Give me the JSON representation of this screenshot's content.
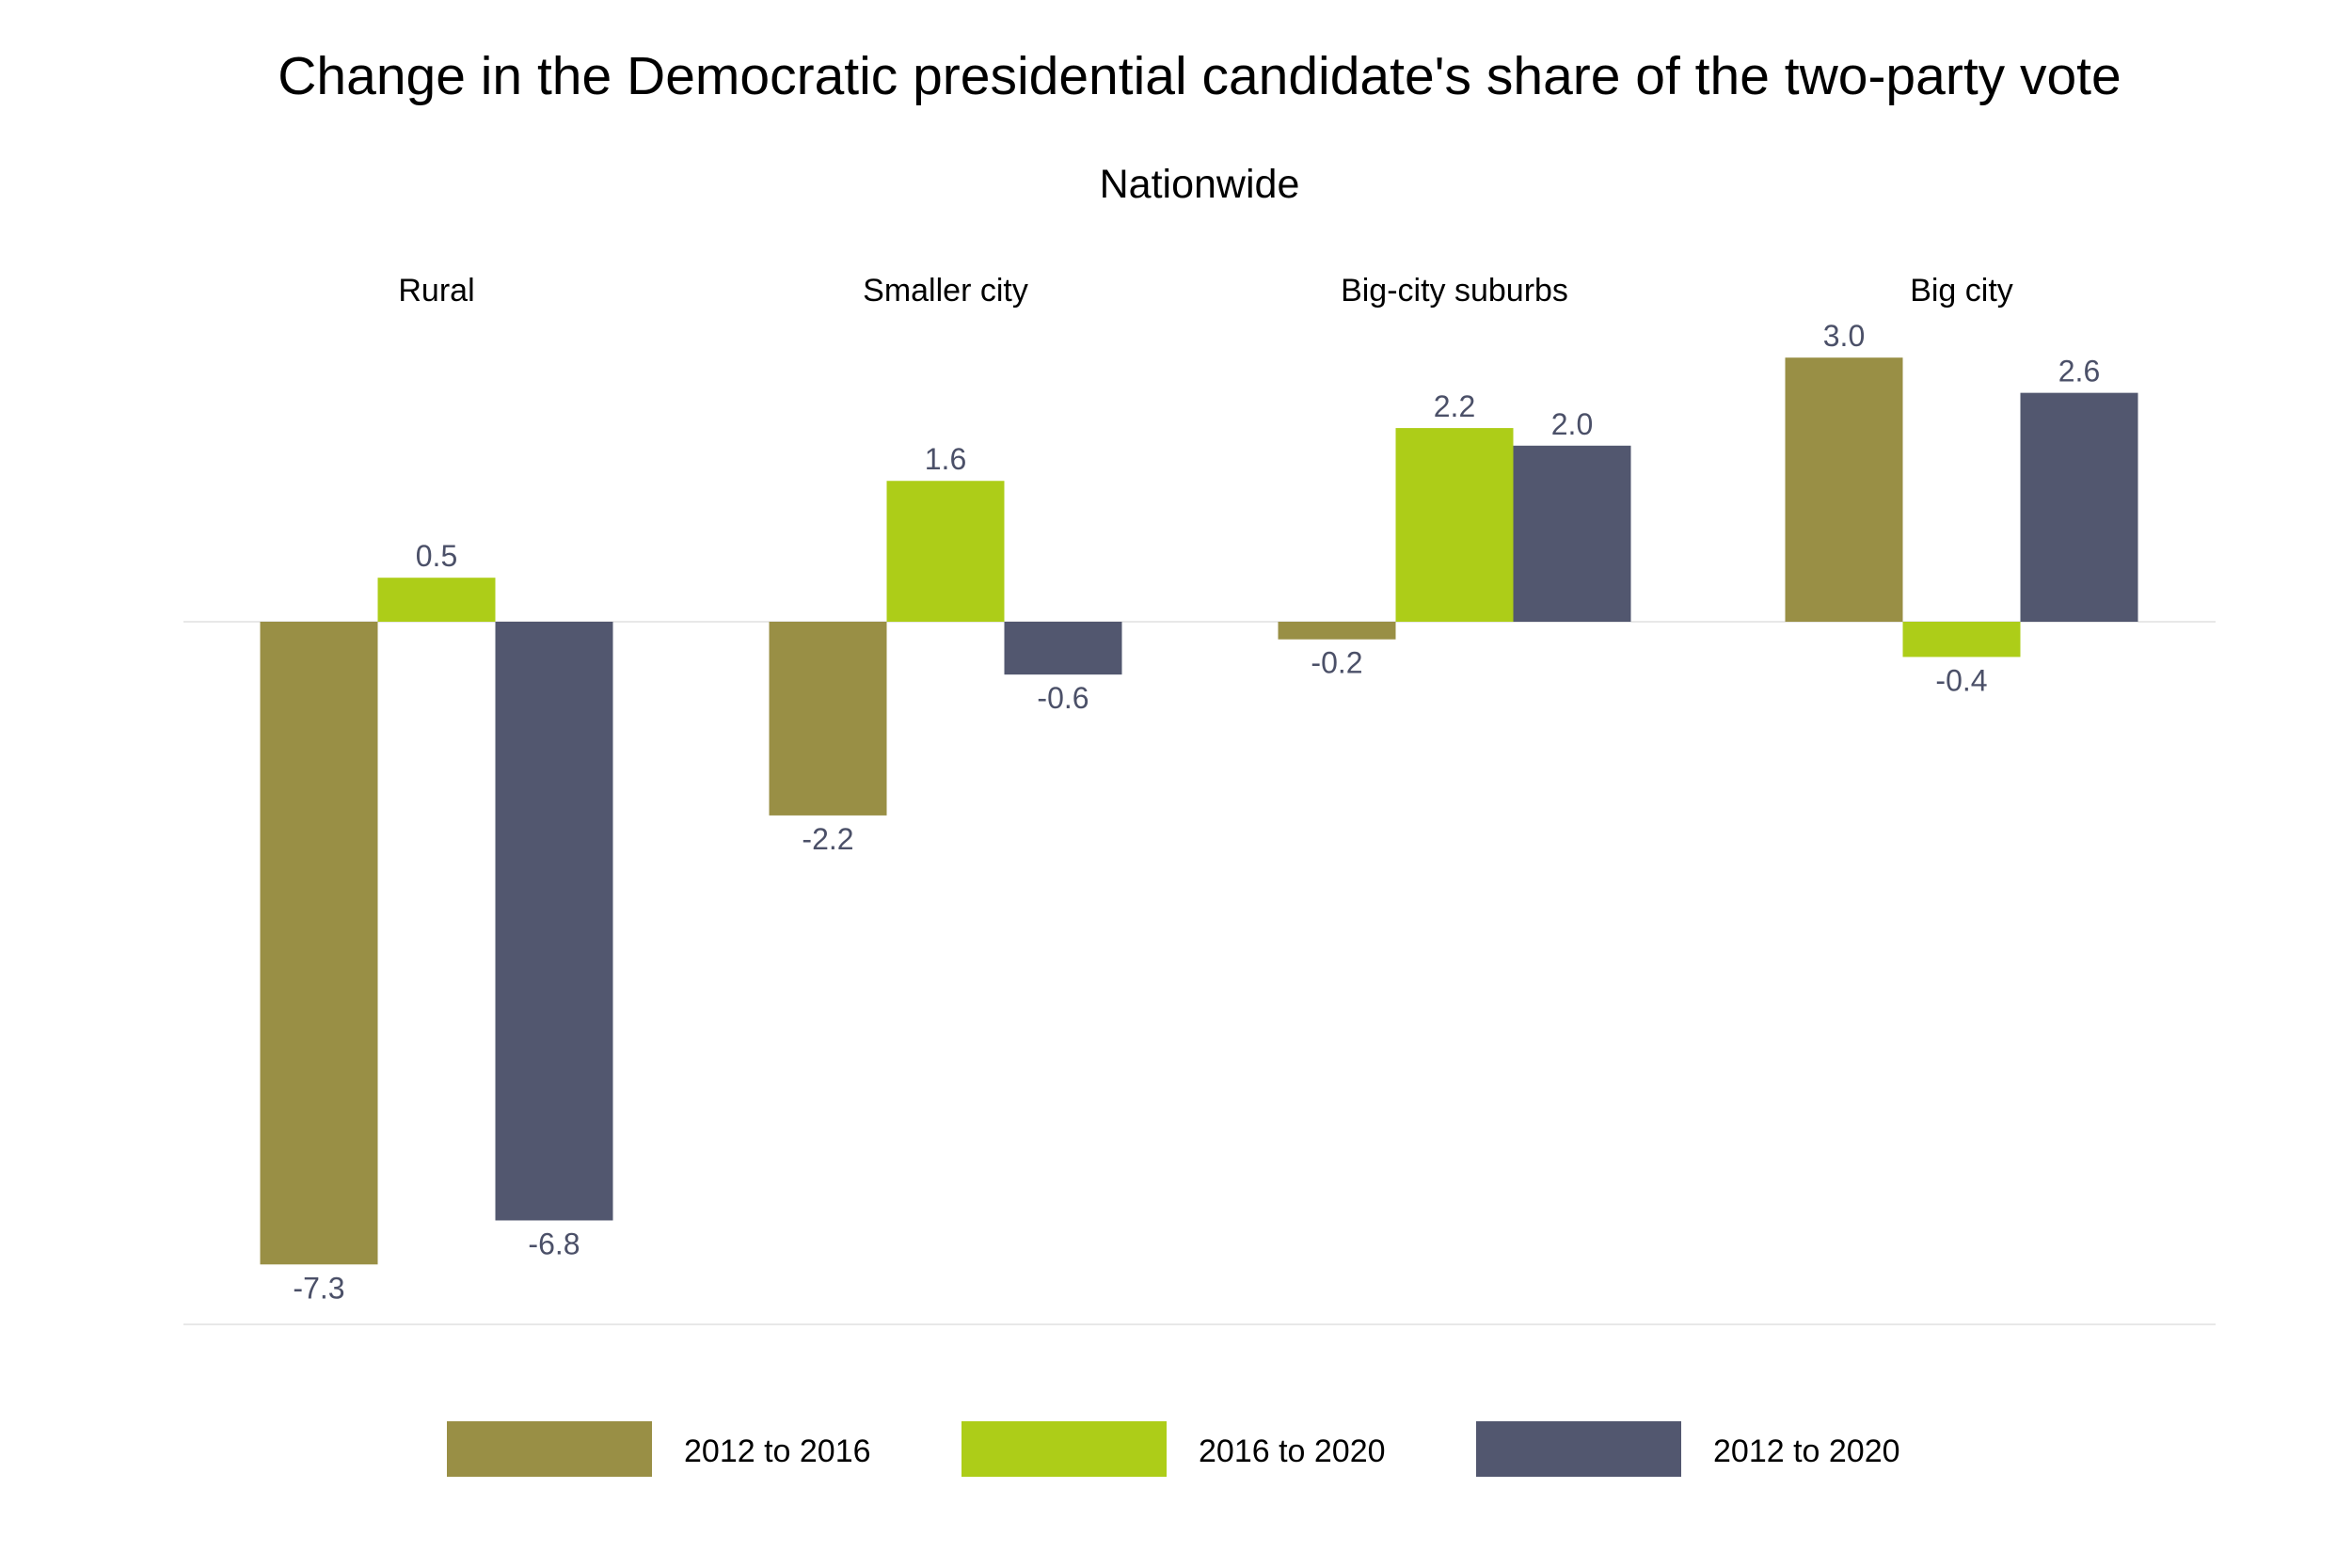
{
  "chart_data": {
    "type": "bar",
    "title": "Change in the Democratic presidential candidate's share of the two-party vote",
    "subtitle": "Nationwide",
    "categories": [
      "Rural",
      "Smaller city",
      "Big-city suburbs",
      "Big city"
    ],
    "series": [
      {
        "name": "2012 to 2016",
        "color": "#998f45",
        "values": [
          -7.3,
          -2.2,
          -0.2,
          3.0
        ],
        "labels": [
          "-7.3",
          "-2.2",
          "-0.2",
          "3.0"
        ]
      },
      {
        "name": "2016 to 2020",
        "color": "#adcd18",
        "values": [
          0.5,
          1.6,
          2.2,
          -0.4
        ],
        "labels": [
          "0.5",
          "1.6",
          "2.2",
          "-0.4"
        ]
      },
      {
        "name": "2012 to 2020",
        "color": "#52576f",
        "values": [
          -6.8,
          -0.6,
          2.0,
          2.6
        ],
        "labels": [
          "-6.8",
          "-0.6",
          "2.0",
          "2.6"
        ]
      }
    ],
    "ylim": [
      -8,
      3.2
    ],
    "grid": false,
    "legend": "bottom",
    "label_color": "#4b5068"
  }
}
